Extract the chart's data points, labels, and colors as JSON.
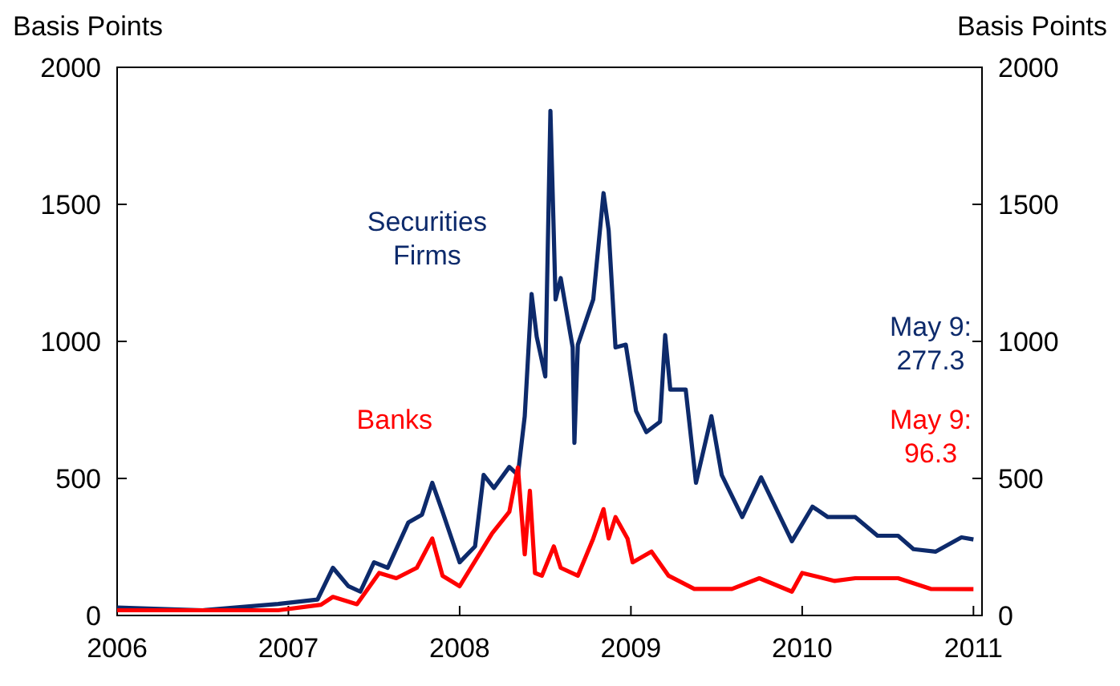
{
  "chart_data": {
    "type": "line",
    "ylabel": "Basis Points",
    "y2label": "Basis Points",
    "xlim": [
      2006,
      2011.05
    ],
    "xticks": [
      2006,
      2007,
      2008,
      2009,
      2010,
      2011
    ],
    "ylim": [
      0,
      2000
    ],
    "yticks": [
      0,
      500,
      1000,
      1500,
      2000
    ],
    "y2lim": [
      0,
      2000
    ],
    "y2ticks": [
      0,
      500,
      1000,
      1500,
      2000
    ],
    "grid": false,
    "marker": "none",
    "line_style": "solid",
    "series": [
      {
        "name": "Securities Firms",
        "color": "#0d2a6b",
        "x": [
          2006.0,
          2006.5,
          2006.94,
          2007.17,
          2007.26,
          2007.35,
          2007.42,
          2007.5,
          2007.58,
          2007.7,
          2007.78,
          2007.84,
          2007.9,
          2008.0,
          2008.09,
          2008.14,
          2008.2,
          2008.29,
          2008.34,
          2008.38,
          2008.42,
          2008.45,
          2008.5,
          2008.53,
          2008.56,
          2008.59,
          2008.66,
          2008.67,
          2008.69,
          2008.78,
          2008.84,
          2008.87,
          2008.91,
          2008.97,
          2009.03,
          2009.09,
          2009.17,
          2009.2,
          2009.23,
          2009.32,
          2009.38,
          2009.47,
          2009.53,
          2009.65,
          2009.76,
          2009.94,
          2010.06,
          2010.15,
          2010.31,
          2010.44,
          2010.56,
          2010.65,
          2010.78,
          2010.93,
          2011.0
        ],
        "values": [
          29,
          19,
          42,
          58,
          174,
          107,
          87,
          194,
          174,
          339,
          368,
          484,
          378,
          194,
          252,
          513,
          465,
          542,
          513,
          727,
          1173,
          1017,
          872,
          1841,
          1153,
          1231,
          978,
          630,
          988,
          1153,
          1541,
          1405,
          978,
          988,
          746,
          669,
          707,
          1023,
          824,
          824,
          484,
          727,
          513,
          359,
          504,
          271,
          397,
          359,
          359,
          291,
          291,
          242,
          233,
          285,
          277.3
        ]
      },
      {
        "name": "Banks",
        "color": "#ff0000",
        "x": [
          2006.0,
          2006.94,
          2007.19,
          2007.26,
          2007.4,
          2007.53,
          2007.63,
          2007.75,
          2007.84,
          2007.9,
          2008.0,
          2008.19,
          2008.29,
          2008.34,
          2008.38,
          2008.41,
          2008.44,
          2008.48,
          2008.55,
          2008.59,
          2008.69,
          2008.78,
          2008.84,
          2008.87,
          2008.91,
          2008.98,
          2009.01,
          2009.12,
          2009.22,
          2009.37,
          2009.59,
          2009.75,
          2009.94,
          2010.0,
          2010.19,
          2010.31,
          2010.56,
          2010.75,
          2011.0
        ],
        "values": [
          19,
          19,
          39,
          68,
          41,
          155,
          136,
          174,
          281,
          145,
          107,
          300,
          378,
          540,
          223,
          455,
          155,
          145,
          252,
          174,
          145,
          281,
          388,
          281,
          359,
          281,
          194,
          233,
          145,
          97,
          97,
          136,
          87,
          155,
          126,
          136,
          136,
          97,
          96.3
        ]
      }
    ],
    "annotations": [
      "May 9: 277.3",
      "May 9: 96.3"
    ]
  }
}
